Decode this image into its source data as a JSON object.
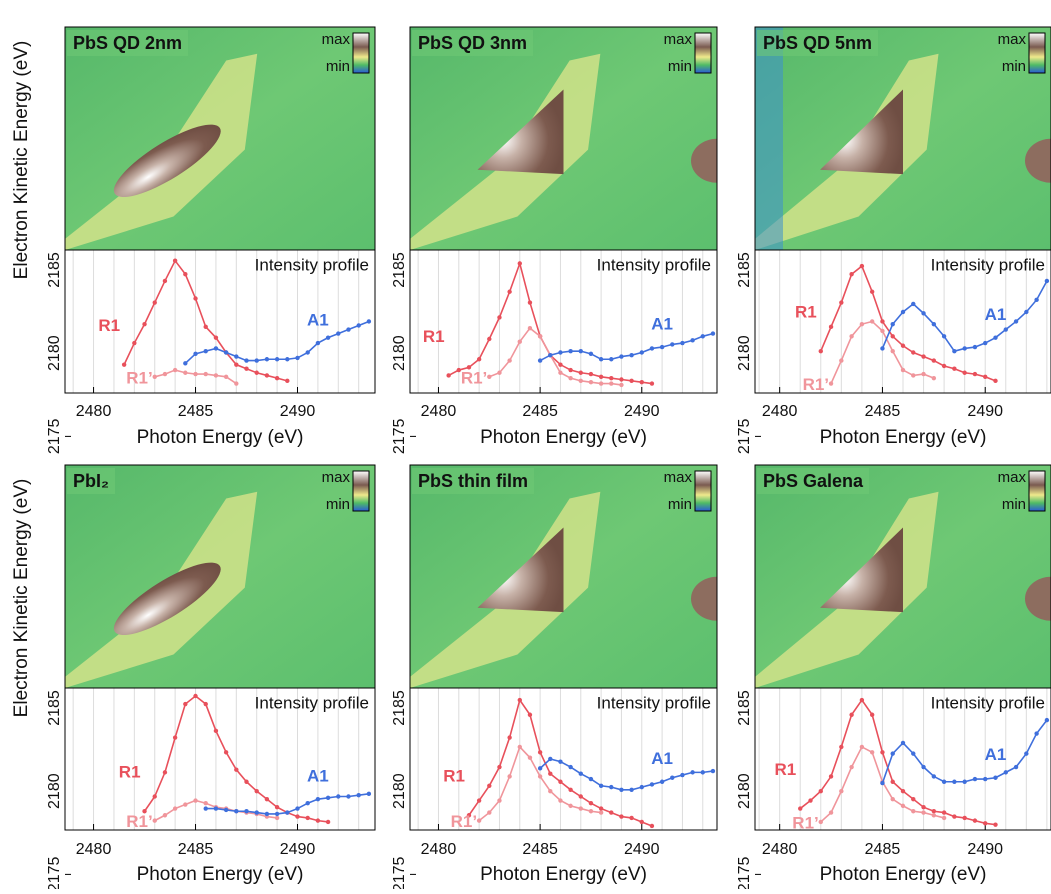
{
  "chart_data": [
    {
      "type": "line",
      "title": "PbS QD 2nm",
      "ylabel": "Electron Kinetic Energy (eV)",
      "xlabel": "Photon Energy (eV)",
      "annotation": "Intensity profile",
      "colorbar": [
        "max",
        "min"
      ],
      "xlim": [
        2478.6,
        2493.8
      ],
      "ylim": [
        2172.8,
        2186.2
      ],
      "xticks": [
        2480,
        2485,
        2490
      ],
      "yticks": [
        2175,
        2180,
        2185
      ],
      "series": [
        {
          "name": "R1",
          "color": "#e8505b",
          "x": [
            2481.5,
            2482,
            2482.5,
            2483,
            2483.5,
            2484,
            2484.5,
            2485,
            2485.5,
            2486,
            2486.5,
            2487,
            2487.5,
            2488,
            2488.5,
            2489,
            2489.5
          ],
          "values": [
            21,
            37,
            51,
            67,
            83,
            98,
            88,
            70,
            49,
            41,
            30,
            21,
            18,
            15,
            13,
            11,
            9
          ]
        },
        {
          "name": "R1’",
          "color": "#f0959b",
          "x": [
            2483,
            2483.5,
            2484,
            2484.5,
            2485,
            2485.5,
            2486,
            2486.5,
            2487
          ],
          "values": [
            12,
            14,
            17,
            15,
            14,
            14,
            13,
            12,
            7
          ]
        },
        {
          "name": "A1",
          "color": "#3f6fdc",
          "x": [
            2484.5,
            2485,
            2485.5,
            2486,
            2486.5,
            2487,
            2487.5,
            2488,
            2488.5,
            2489,
            2489.5,
            2490,
            2490.5,
            2491,
            2491.5,
            2492,
            2492.5,
            2493,
            2493.5
          ],
          "values": [
            22,
            29,
            31,
            33,
            30,
            27,
            24,
            24,
            25,
            25,
            25,
            26,
            30,
            37,
            41,
            44,
            47,
            50,
            53
          ]
        }
      ]
    },
    {
      "type": "line",
      "title": "PbS QD 3nm",
      "xlabel": "Photon Energy (eV)",
      "annotation": "Intensity profile",
      "colorbar": [
        "max",
        "min"
      ],
      "xlim": [
        2478.6,
        2493.7
      ],
      "ylim": [
        2172.8,
        2186.2
      ],
      "xticks": [
        2480,
        2485,
        2490
      ],
      "yticks": [
        2175,
        2180,
        2185
      ],
      "series": [
        {
          "name": "R1",
          "color": "#e8505b",
          "x": [
            2480.5,
            2481,
            2481.5,
            2482,
            2482.5,
            2483,
            2483.5,
            2484,
            2484.5,
            2485,
            2485.5,
            2486,
            2486.5,
            2487,
            2487.5,
            2488,
            2488.5,
            2489,
            2489.5,
            2490,
            2490.5
          ],
          "values": [
            13,
            17,
            19,
            25,
            40,
            56,
            75,
            96,
            67,
            42,
            28,
            21,
            17,
            15,
            14,
            12,
            11,
            10,
            9,
            8,
            7
          ]
        },
        {
          "name": "R1’",
          "color": "#f0959b",
          "x": [
            2482.5,
            2483,
            2483.5,
            2484,
            2484.5,
            2485,
            2485.5,
            2486,
            2486.5,
            2487,
            2487.5,
            2488,
            2488.5,
            2489
          ],
          "values": [
            12,
            15,
            24,
            38,
            48,
            42,
            28,
            15,
            11,
            9,
            8,
            7,
            7,
            6
          ]
        },
        {
          "name": "A1",
          "color": "#3f6fdc",
          "x": [
            2485,
            2485.5,
            2486,
            2486.5,
            2487,
            2487.5,
            2488,
            2488.5,
            2489,
            2489.5,
            2490,
            2490.5,
            2491,
            2491.5,
            2492,
            2492.5,
            2493,
            2493.5
          ],
          "values": [
            24,
            28,
            30,
            31,
            31,
            29,
            25,
            25,
            27,
            28,
            30,
            33,
            34,
            36,
            37,
            39,
            42,
            44
          ]
        }
      ]
    },
    {
      "type": "line",
      "title": "PbS QD 5nm",
      "xlabel": "Photon Energy (eV)",
      "annotation": "Intensity profile",
      "colorbar": [
        "max",
        "min"
      ],
      "xlim": [
        2478.8,
        2493.2
      ],
      "ylim": [
        2172.8,
        2186.2
      ],
      "xticks": [
        2480,
        2485,
        2490
      ],
      "yticks": [
        2175,
        2180,
        2185
      ],
      "series": [
        {
          "name": "R1",
          "color": "#e8505b",
          "x": [
            2482,
            2482.5,
            2483,
            2483.5,
            2484,
            2484.5,
            2485,
            2485.5,
            2486,
            2486.5,
            2487,
            2487.5,
            2488,
            2488.5,
            2489,
            2489.5,
            2490,
            2490.5
          ],
          "values": [
            31,
            49,
            67,
            88,
            94,
            75,
            53,
            42,
            35,
            30,
            27,
            24,
            20,
            18,
            15,
            14,
            12,
            9
          ]
        },
        {
          "name": "R1’",
          "color": "#f0959b",
          "x": [
            2482.5,
            2483,
            2483.5,
            2484,
            2484.5,
            2485,
            2485.5,
            2486,
            2486.5,
            2487,
            2487.5
          ],
          "values": [
            7,
            24,
            42,
            51,
            53,
            46,
            31,
            17,
            13,
            14,
            11
          ]
        },
        {
          "name": "A1",
          "color": "#3f6fdc",
          "x": [
            2485,
            2485.5,
            2486,
            2486.5,
            2487,
            2487.5,
            2488,
            2488.5,
            2489,
            2489.5,
            2490,
            2490.5,
            2491,
            2491.5,
            2492,
            2492.5,
            2493
          ],
          "values": [
            33,
            51,
            60,
            66,
            59,
            51,
            42,
            31,
            33,
            34,
            37,
            41,
            47,
            53,
            60,
            69,
            83
          ]
        }
      ]
    },
    {
      "type": "line",
      "title": "PbI₂",
      "ylabel": "Electron Kinetic Energy (eV)",
      "xlabel": "Photon Energy (eV)",
      "annotation": "Intensity profile",
      "colorbar": [
        "max",
        "min"
      ],
      "xlim": [
        2478.6,
        2493.8
      ],
      "ylim": [
        2172.8,
        2186.2
      ],
      "xticks": [
        2480,
        2485,
        2490
      ],
      "yticks": [
        2175,
        2180,
        2185
      ],
      "series": [
        {
          "name": "R1",
          "color": "#e8505b",
          "x": [
            2482.5,
            2483,
            2483.5,
            2484,
            2484.5,
            2485,
            2485.5,
            2486,
            2486.5,
            2487,
            2487.5,
            2488,
            2488.5,
            2489,
            2489.5,
            2490,
            2490.5,
            2491,
            2491.5
          ],
          "values": [
            14,
            25,
            43,
            69,
            94,
            100,
            94,
            74,
            58,
            45,
            36,
            29,
            23,
            17,
            13,
            10,
            9,
            7,
            6
          ]
        },
        {
          "name": "R1’",
          "color": "#f0959b",
          "x": [
            2483,
            2483.5,
            2484,
            2484.5,
            2485,
            2485.5,
            2486,
            2486.5,
            2487,
            2487.5,
            2488,
            2488.5,
            2489
          ],
          "values": [
            7,
            11,
            16,
            19,
            22,
            20,
            17,
            16,
            14,
            13,
            12,
            10,
            9
          ]
        },
        {
          "name": "A1",
          "color": "#3f6fdc",
          "x": [
            2485.5,
            2486,
            2486.5,
            2487,
            2487.5,
            2488,
            2488.5,
            2489,
            2489.5,
            2490,
            2490.5,
            2491,
            2491.5,
            2492,
            2492.5,
            2493,
            2493.5
          ],
          "values": [
            16,
            16,
            15,
            14,
            14,
            13,
            12,
            12,
            13,
            16,
            20,
            23,
            24,
            25,
            25,
            26,
            27
          ]
        }
      ]
    },
    {
      "type": "line",
      "title": "PbS thin film",
      "xlabel": "Photon Energy (eV)",
      "annotation": "Intensity profile",
      "colorbar": [
        "max",
        "min"
      ],
      "xlim": [
        2478.6,
        2493.7
      ],
      "ylim": [
        2172.8,
        2186.2
      ],
      "xticks": [
        2480,
        2485,
        2490
      ],
      "yticks": [
        2175,
        2180,
        2185
      ],
      "series": [
        {
          "name": "R1",
          "color": "#e8505b",
          "x": [
            2481.5,
            2482,
            2482.5,
            2483,
            2483.5,
            2484,
            2484.5,
            2485,
            2485.5,
            2486,
            2486.5,
            2487,
            2487.5,
            2488,
            2488.5,
            2489,
            2489.5,
            2490,
            2490.5
          ],
          "values": [
            11,
            22,
            33,
            47,
            69,
            97,
            86,
            58,
            42,
            36,
            30,
            25,
            20,
            16,
            13,
            10,
            9,
            6,
            3
          ]
        },
        {
          "name": "R1’",
          "color": "#f0959b",
          "x": [
            2482,
            2482.5,
            2483,
            2483.5,
            2484,
            2484.5,
            2485,
            2485.5,
            2486,
            2486.5,
            2487,
            2487.5,
            2488
          ],
          "values": [
            7,
            13,
            22,
            40,
            62,
            54,
            40,
            29,
            22,
            18,
            16,
            14,
            13
          ]
        },
        {
          "name": "A1",
          "color": "#3f6fdc",
          "x": [
            2485,
            2485.5,
            2486,
            2486.5,
            2487,
            2487.5,
            2488,
            2488.5,
            2489,
            2489.5,
            2490,
            2490.5,
            2491,
            2491.5,
            2492,
            2492.5,
            2493,
            2493.5
          ],
          "values": [
            46,
            53,
            51,
            47,
            42,
            38,
            33,
            32,
            30,
            30,
            32,
            34,
            36,
            39,
            41,
            43,
            43,
            44
          ]
        }
      ]
    },
    {
      "type": "line",
      "title": "PbS Galena",
      "xlabel": "Photon Energy (eV)",
      "annotation": "Intensity profile",
      "colorbar": [
        "max",
        "min"
      ],
      "xlim": [
        2478.8,
        2493.2
      ],
      "ylim": [
        2172.8,
        2186.2
      ],
      "xticks": [
        2480,
        2485,
        2490
      ],
      "yticks": [
        2175,
        2180,
        2185
      ],
      "series": [
        {
          "name": "R1",
          "color": "#e8505b",
          "x": [
            2481,
            2481.5,
            2482,
            2482.5,
            2483,
            2483.5,
            2484,
            2484.5,
            2485,
            2485.5,
            2486,
            2486.5,
            2487,
            2487.5,
            2488,
            2488.5,
            2489,
            2489.5,
            2490,
            2490.5
          ],
          "values": [
            16,
            22,
            29,
            40,
            62,
            86,
            97,
            86,
            58,
            36,
            29,
            23,
            17,
            14,
            13,
            10,
            9,
            7,
            5,
            4
          ]
        },
        {
          "name": "R1’",
          "color": "#f0959b",
          "x": [
            2482,
            2482.5,
            2483,
            2483.5,
            2484,
            2484.5,
            2485,
            2485.5,
            2486,
            2486.5,
            2487,
            2487.5,
            2488
          ],
          "values": [
            6,
            13,
            29,
            47,
            62,
            58,
            36,
            23,
            18,
            14,
            13,
            11,
            9
          ]
        },
        {
          "name": "A1",
          "color": "#3f6fdc",
          "x": [
            2485,
            2485.5,
            2486,
            2486.5,
            2487,
            2487.5,
            2488,
            2488.5,
            2489,
            2489.5,
            2490,
            2490.5,
            2491,
            2491.5,
            2492,
            2492.5,
            2493
          ],
          "values": [
            35,
            57,
            65,
            57,
            47,
            40,
            36,
            36,
            36,
            38,
            38,
            39,
            43,
            47,
            57,
            72,
            82
          ]
        }
      ]
    }
  ]
}
